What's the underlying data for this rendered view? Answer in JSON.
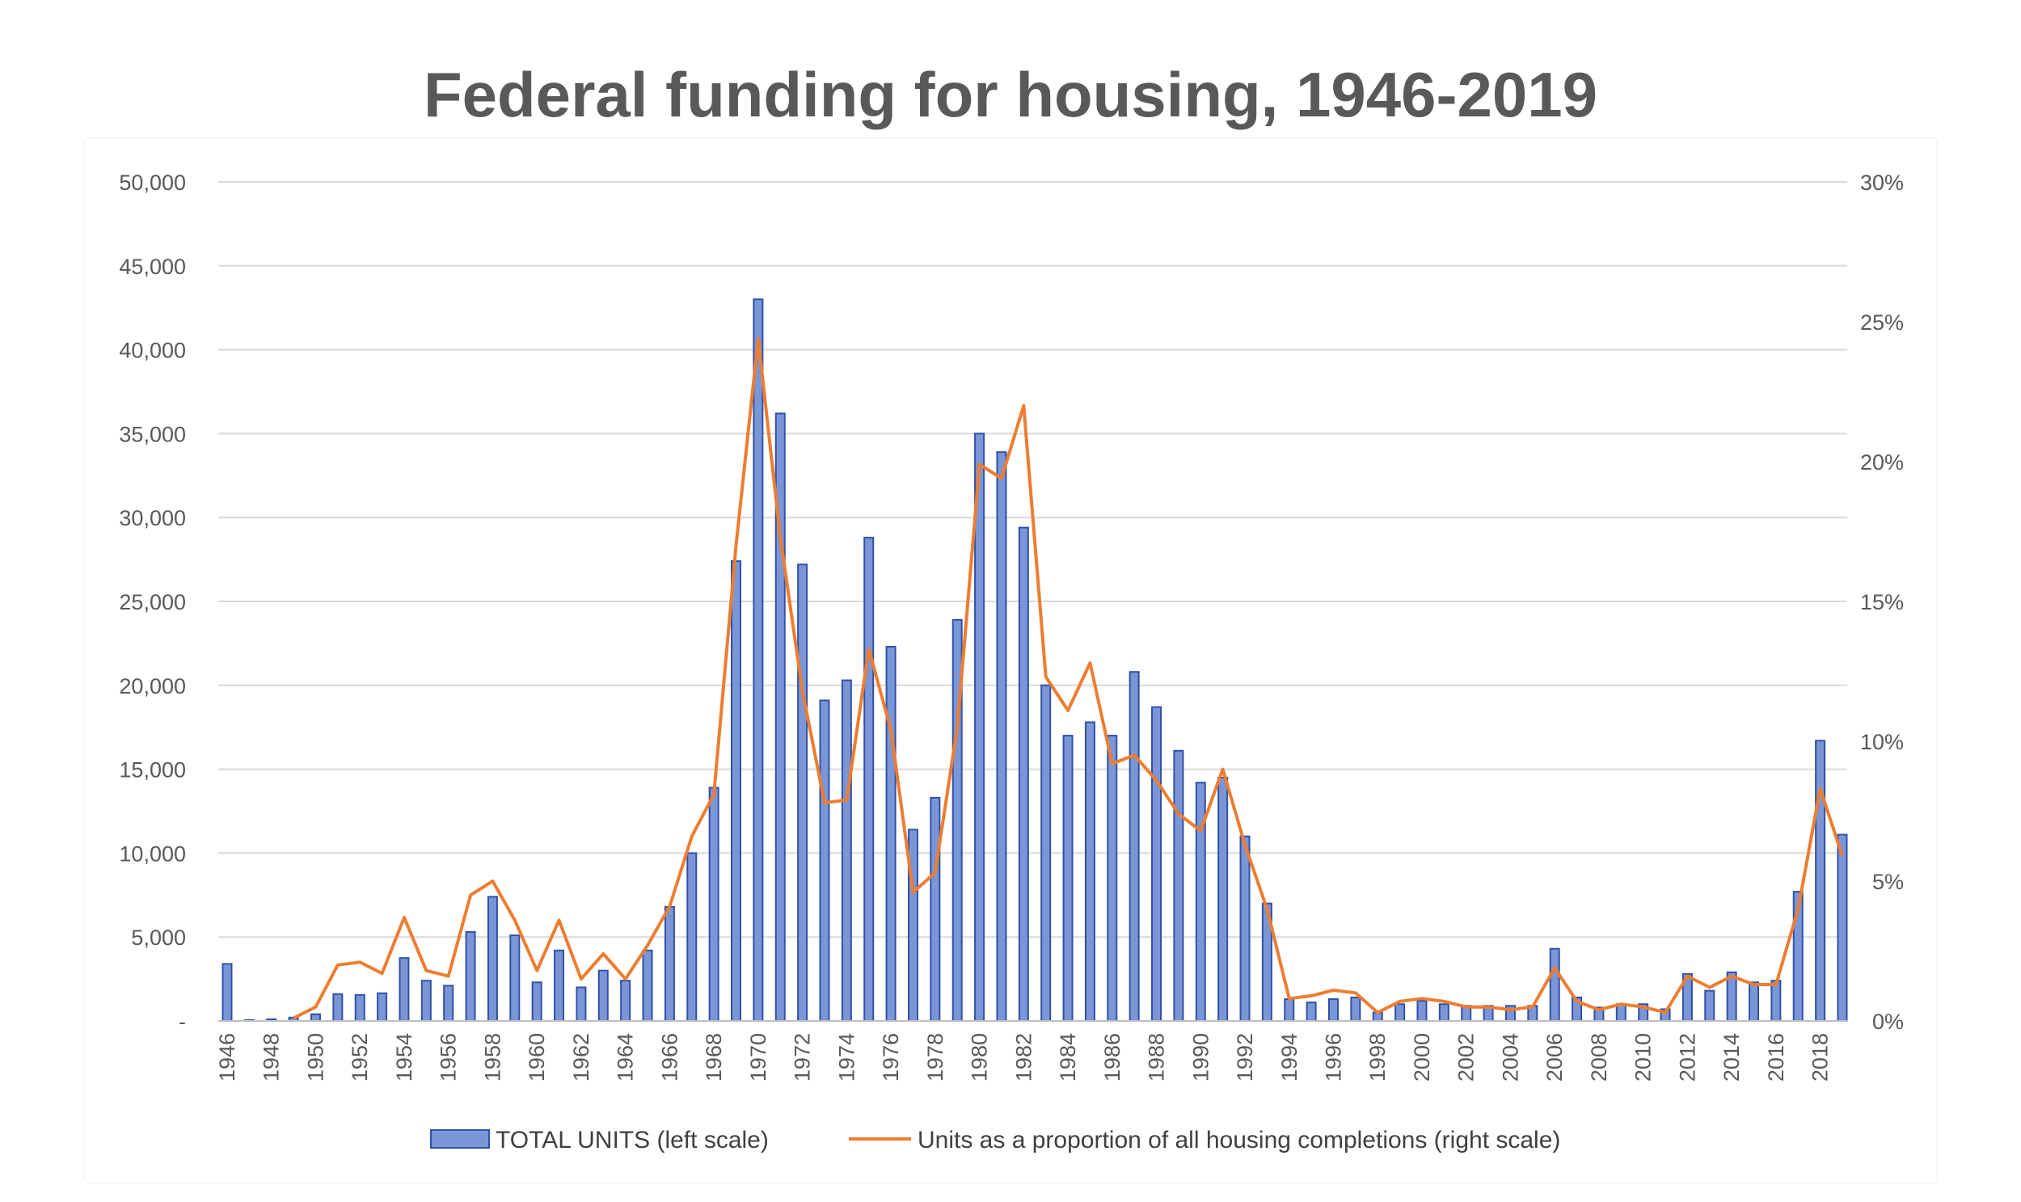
{
  "title": "Federal funding for housing, 1946-2019",
  "chart_data": {
    "type": "bar",
    "title": "Federal funding for housing, 1946-2019",
    "xlabel": "",
    "ylabel": "",
    "x": [
      1946,
      1947,
      1948,
      1949,
      1950,
      1951,
      1952,
      1953,
      1954,
      1955,
      1956,
      1957,
      1958,
      1959,
      1960,
      1961,
      1962,
      1963,
      1964,
      1965,
      1966,
      1967,
      1968,
      1969,
      1970,
      1971,
      1972,
      1973,
      1974,
      1975,
      1976,
      1977,
      1978,
      1979,
      1980,
      1981,
      1982,
      1983,
      1984,
      1985,
      1986,
      1987,
      1988,
      1989,
      1990,
      1991,
      1992,
      1993,
      1994,
      1995,
      1996,
      1997,
      1998,
      1999,
      2000,
      2001,
      2002,
      2003,
      2004,
      2005,
      2006,
      2007,
      2008,
      2009,
      2010,
      2011,
      2012,
      2013,
      2014,
      2015,
      2016,
      2017,
      2018,
      2019
    ],
    "x_tick_labels": [
      "1946",
      "1948",
      "1950",
      "1952",
      "1954",
      "1956",
      "1958",
      "1960",
      "1962",
      "1964",
      "1966",
      "1968",
      "1970",
      "1972",
      "1974",
      "1976",
      "1978",
      "1980",
      "1982",
      "1984",
      "1986",
      "1988",
      "1990",
      "1992",
      "1994",
      "1996",
      "1998",
      "2000",
      "2002",
      "2004",
      "2006",
      "2008",
      "2010",
      "2012",
      "2014",
      "2016",
      "2018"
    ],
    "y_left_ticks": [
      "-",
      "5,000",
      "10,000",
      "15,000",
      "20,000",
      "25,000",
      "30,000",
      "35,000",
      "40,000",
      "45,000",
      "50,000"
    ],
    "y_right_ticks": [
      "0%",
      "5%",
      "10%",
      "15%",
      "20%",
      "25%",
      "30%"
    ],
    "ylim_left": [
      0,
      50000
    ],
    "ylim_right": [
      0,
      30
    ],
    "grid": true,
    "legend_position": "bottom",
    "series": [
      {
        "name": "TOTAL UNITS (left scale)",
        "type": "bar",
        "axis": "left",
        "color": "#7b96d6",
        "edge_color": "#2f52a8",
        "values": [
          3400,
          50,
          100,
          200,
          400,
          1600,
          1550,
          1650,
          3750,
          2400,
          2100,
          5300,
          7400,
          5100,
          2300,
          4200,
          2000,
          3000,
          2400,
          4200,
          6800,
          10000,
          13900,
          27400,
          43000,
          36200,
          27200,
          19100,
          20300,
          28800,
          22300,
          11400,
          13300,
          23900,
          35000,
          33900,
          29400,
          20000,
          17000,
          17800,
          17000,
          20800,
          18700,
          16100,
          14200,
          14500,
          11000,
          7000,
          1300,
          1100,
          1300,
          1400,
          500,
          1000,
          1200,
          1000,
          900,
          900,
          900,
          900,
          4300,
          1400,
          800,
          1000,
          1000,
          700,
          2800,
          1800,
          2900,
          2300,
          2400,
          7700,
          16700,
          11100
        ]
      },
      {
        "name": "Units as a proportion of all housing completions (right scale)",
        "type": "line",
        "axis": "right",
        "color": "#ed7d31",
        "values": [
          null,
          null,
          null,
          0.1,
          0.5,
          2.0,
          2.1,
          1.7,
          3.7,
          1.8,
          1.6,
          4.5,
          5.0,
          3.6,
          1.8,
          3.6,
          1.5,
          2.4,
          1.5,
          2.7,
          4.1,
          6.6,
          8.1,
          17.0,
          24.4,
          17.3,
          11.8,
          7.8,
          7.9,
          13.3,
          10.4,
          4.6,
          5.3,
          10.5,
          19.9,
          19.4,
          22.0,
          12.3,
          11.1,
          12.8,
          9.2,
          9.5,
          8.6,
          7.4,
          6.8,
          9.0,
          6.3,
          4.0,
          0.8,
          0.9,
          1.1,
          1.0,
          0.3,
          0.7,
          0.8,
          0.7,
          0.5,
          0.5,
          0.4,
          0.5,
          1.9,
          0.7,
          0.4,
          0.6,
          0.5,
          0.3,
          1.6,
          1.2,
          1.6,
          1.3,
          1.3,
          4.0,
          8.3,
          5.9
        ]
      }
    ]
  }
}
